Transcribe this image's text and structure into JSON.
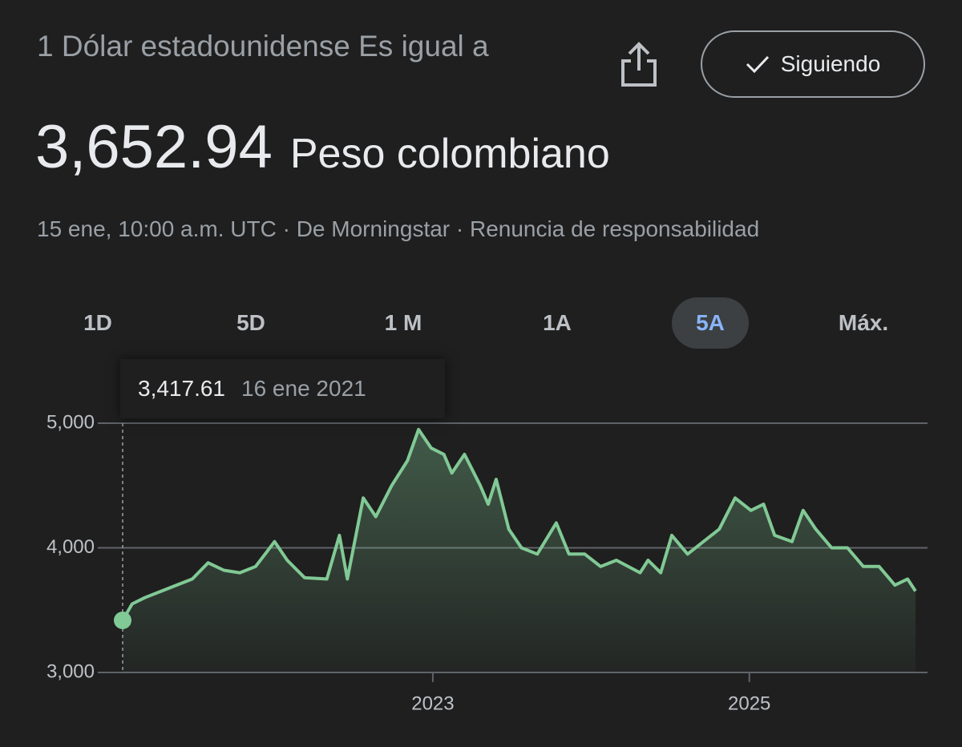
{
  "header": {
    "title": "1 Dólar estadounidense Es igual a",
    "value": "3,652.94",
    "currency": "Peso colombiano",
    "meta": "15 ene, 10:00 a.m. UTC · De Morningstar · Renuncia de responsabilidad",
    "follow": "Siguiendo"
  },
  "tabs": [
    "1D",
    "5D",
    "1 M",
    "1A",
    "5A",
    "Máx."
  ],
  "active_tab": 4,
  "tooltip": {
    "value": "3,417.61",
    "date": "16 ene 2021"
  },
  "chart_data": {
    "type": "line",
    "color": "#81c995",
    "x": [
      2021.04,
      2021.1,
      2021.18,
      2021.28,
      2021.38,
      2021.48,
      2021.58,
      2021.68,
      2021.78,
      2021.88,
      2021.94,
      2022.0,
      2022.08,
      2022.19,
      2022.33,
      2022.41,
      2022.46,
      2022.56,
      2022.64,
      2022.74,
      2022.84,
      2022.91,
      2022.99,
      2023.07,
      2023.12,
      2023.2,
      2023.3,
      2023.35,
      2023.4,
      2023.48,
      2023.56,
      2023.66,
      2023.78,
      2023.86,
      2023.96,
      2024.06,
      2024.16,
      2024.31,
      2024.36,
      2024.44,
      2024.51,
      2024.61,
      2024.71,
      2024.81,
      2024.91,
      2025.01,
      2025.09,
      2025.16,
      2025.27,
      2025.34,
      2025.42,
      2025.52,
      2025.62,
      2025.72,
      2025.82,
      2025.92,
      2026.0,
      2026.05
    ],
    "values": [
      3418,
      3550,
      3600,
      3650,
      3700,
      3750,
      3880,
      3820,
      3800,
      3850,
      3950,
      4050,
      3900,
      3760,
      3750,
      4100,
      3750,
      4400,
      4250,
      4500,
      4700,
      4950,
      4800,
      4750,
      4600,
      4750,
      4500,
      4350,
      4550,
      4150,
      4000,
      3950,
      4200,
      3950,
      3950,
      3850,
      3900,
      3800,
      3900,
      3800,
      4100,
      3950,
      4050,
      4150,
      4400,
      4300,
      4350,
      4100,
      4050,
      4300,
      4150,
      4000,
      4000,
      3850,
      3850,
      3700,
      3750,
      3653
    ],
    "xlim": [
      2021.04,
      2026.05
    ],
    "xticks": [
      2023,
      2025
    ],
    "ylim": [
      3000,
      5000
    ],
    "yticks": [
      {
        "value": 3000,
        "label": "3,000"
      },
      {
        "value": 4000,
        "label": "4,000"
      },
      {
        "value": 5000,
        "label": "5,000"
      }
    ],
    "grid": true
  }
}
